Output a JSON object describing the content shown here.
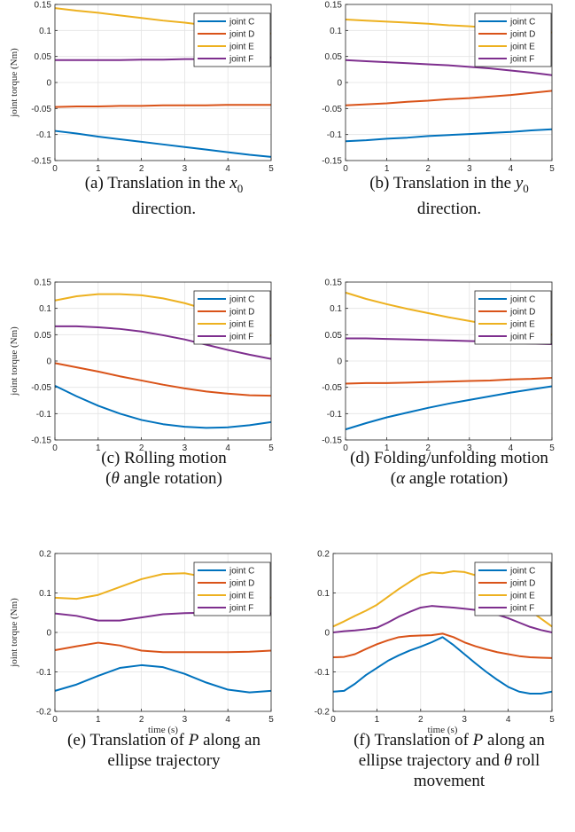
{
  "legend_labels": [
    "joint C",
    "joint D",
    "joint E",
    "joint F"
  ],
  "series_colors": [
    "#0072bd",
    "#d95319",
    "#edb120",
    "#7e2f8e"
  ],
  "chart_data": [
    {
      "type": "line",
      "ylabel": "joint torque (Nm)",
      "xlabel": "",
      "xlim": [
        0,
        5
      ],
      "ylim": [
        -0.15,
        0.15
      ],
      "xticks": [
        "0",
        "1",
        "2",
        "3",
        "4",
        "5"
      ],
      "yticks": [
        "-0.15",
        "-0.1",
        "-0.05",
        "0",
        "0.05",
        "0.1",
        "0.15"
      ],
      "grid": true,
      "legend": "top-right",
      "x": [
        0,
        0.5,
        1,
        1.5,
        2,
        2.5,
        3,
        3.5,
        4,
        4.5,
        5
      ],
      "series": [
        {
          "name": "joint C",
          "values": [
            -0.093,
            -0.098,
            -0.104,
            -0.109,
            -0.114,
            -0.119,
            -0.124,
            -0.129,
            -0.134,
            -0.139,
            -0.143
          ]
        },
        {
          "name": "joint D",
          "values": [
            -0.047,
            -0.046,
            -0.046,
            -0.045,
            -0.045,
            -0.044,
            -0.044,
            -0.044,
            -0.043,
            -0.043,
            -0.043
          ]
        },
        {
          "name": "joint E",
          "values": [
            0.143,
            0.138,
            0.134,
            0.129,
            0.124,
            0.119,
            0.115,
            0.11,
            0.105,
            0.1,
            0.094
          ]
        },
        {
          "name": "joint F",
          "values": [
            0.043,
            0.043,
            0.043,
            0.043,
            0.044,
            0.044,
            0.045,
            0.045,
            0.046,
            0.047,
            0.048
          ]
        }
      ],
      "caption": {
        "prefix": "(a) Translation in the ",
        "var": "x",
        "sub": "0",
        "suffix": " direction."
      }
    },
    {
      "type": "line",
      "ylabel": "",
      "xlabel": "",
      "xlim": [
        0,
        5
      ],
      "ylim": [
        -0.15,
        0.15
      ],
      "xticks": [
        "0",
        "1",
        "2",
        "3",
        "4",
        "5"
      ],
      "yticks": [
        "-0.15",
        "-0.1",
        "-0.05",
        "0",
        "0.05",
        "0.1",
        "0.15"
      ],
      "grid": true,
      "legend": "top-right",
      "x": [
        0,
        0.5,
        1,
        1.5,
        2,
        2.5,
        3,
        3.5,
        4,
        4.5,
        5
      ],
      "series": [
        {
          "name": "joint C",
          "values": [
            -0.113,
            -0.111,
            -0.108,
            -0.106,
            -0.103,
            -0.101,
            -0.099,
            -0.097,
            -0.095,
            -0.092,
            -0.09
          ]
        },
        {
          "name": "joint D",
          "values": [
            -0.044,
            -0.042,
            -0.04,
            -0.037,
            -0.035,
            -0.032,
            -0.03,
            -0.027,
            -0.024,
            -0.02,
            -0.016
          ]
        },
        {
          "name": "joint E",
          "values": [
            0.121,
            0.119,
            0.117,
            0.115,
            0.113,
            0.11,
            0.108,
            0.105,
            0.102,
            0.099,
            0.096
          ]
        },
        {
          "name": "joint F",
          "values": [
            0.043,
            0.041,
            0.039,
            0.037,
            0.035,
            0.033,
            0.03,
            0.027,
            0.023,
            0.019,
            0.014
          ]
        }
      ],
      "caption": {
        "prefix": "(b) Translation in the ",
        "var": "y",
        "sub": "0",
        "suffix": " direction."
      }
    },
    {
      "type": "line",
      "ylabel": "joint torque (Nm)",
      "xlabel": "",
      "xlim": [
        0,
        5
      ],
      "ylim": [
        -0.15,
        0.15
      ],
      "xticks": [
        "0",
        "1",
        "2",
        "3",
        "4",
        "5"
      ],
      "yticks": [
        "-0.15",
        "-0.1",
        "-0.05",
        "0",
        "0.05",
        "0.1",
        "0.15"
      ],
      "grid": true,
      "legend": "top-right",
      "x": [
        0,
        0.5,
        1,
        1.5,
        2,
        2.5,
        3,
        3.5,
        4,
        4.5,
        5
      ],
      "series": [
        {
          "name": "joint C",
          "values": [
            -0.047,
            -0.067,
            -0.085,
            -0.1,
            -0.112,
            -0.12,
            -0.125,
            -0.127,
            -0.126,
            -0.122,
            -0.116
          ]
        },
        {
          "name": "joint D",
          "values": [
            -0.004,
            -0.012,
            -0.02,
            -0.029,
            -0.037,
            -0.045,
            -0.052,
            -0.058,
            -0.062,
            -0.065,
            -0.066
          ]
        },
        {
          "name": "joint E",
          "values": [
            0.115,
            0.123,
            0.127,
            0.127,
            0.125,
            0.119,
            0.11,
            0.098,
            0.084,
            0.067,
            0.048
          ]
        },
        {
          "name": "joint F",
          "values": [
            0.066,
            0.066,
            0.064,
            0.061,
            0.056,
            0.049,
            0.041,
            0.031,
            0.021,
            0.012,
            0.004
          ]
        }
      ],
      "caption": {
        "line1": "(c) Rolling motion",
        "line2_prefix": "(",
        "var": "θ",
        "line2_suffix": " angle rotation)"
      }
    },
    {
      "type": "line",
      "ylabel": "",
      "xlabel": "",
      "xlim": [
        0,
        5
      ],
      "ylim": [
        -0.15,
        0.15
      ],
      "xticks": [
        "0",
        "1",
        "2",
        "3",
        "4",
        "5"
      ],
      "yticks": [
        "-0.15",
        "-0.1",
        "-0.05",
        "0",
        "0.05",
        "0.1",
        "0.15"
      ],
      "grid": true,
      "legend": "top-right",
      "x": [
        0,
        0.5,
        1,
        1.5,
        2,
        2.5,
        3,
        3.5,
        4,
        4.5,
        5
      ],
      "series": [
        {
          "name": "joint C",
          "values": [
            -0.13,
            -0.118,
            -0.107,
            -0.098,
            -0.089,
            -0.081,
            -0.074,
            -0.067,
            -0.06,
            -0.054,
            -0.048
          ]
        },
        {
          "name": "joint D",
          "values": [
            -0.043,
            -0.042,
            -0.042,
            -0.041,
            -0.04,
            -0.039,
            -0.038,
            -0.037,
            -0.035,
            -0.034,
            -0.032
          ]
        },
        {
          "name": "joint E",
          "values": [
            0.13,
            0.118,
            0.108,
            0.099,
            0.091,
            0.083,
            0.076,
            0.069,
            0.062,
            0.056,
            0.05
          ]
        },
        {
          "name": "joint F",
          "values": [
            0.043,
            0.043,
            0.042,
            0.041,
            0.04,
            0.039,
            0.038,
            0.037,
            0.035,
            0.033,
            0.032
          ]
        }
      ],
      "caption": {
        "line1": "(d) Folding/unfolding motion",
        "line2_prefix": "(",
        "var": "α",
        "line2_suffix": " angle rotation)"
      }
    },
    {
      "type": "line",
      "ylabel": "joint torque (Nm)",
      "xlabel": "time (s)",
      "xlim": [
        0,
        5
      ],
      "ylim": [
        -0.2,
        0.2
      ],
      "xticks": [
        "0",
        "1",
        "2",
        "3",
        "4",
        "5"
      ],
      "yticks": [
        "-0.2",
        "-0.1",
        "0",
        "0.1",
        "0.2"
      ],
      "grid": true,
      "legend": "top-right",
      "x": [
        0,
        0.5,
        1,
        1.5,
        2,
        2.5,
        3,
        3.5,
        4,
        4.5,
        5
      ],
      "series": [
        {
          "name": "joint C",
          "values": [
            -0.148,
            -0.132,
            -0.11,
            -0.09,
            -0.083,
            -0.088,
            -0.105,
            -0.127,
            -0.145,
            -0.152,
            -0.148
          ]
        },
        {
          "name": "joint D",
          "values": [
            -0.045,
            -0.035,
            -0.026,
            -0.033,
            -0.046,
            -0.05,
            -0.05,
            -0.05,
            -0.05,
            -0.049,
            -0.046
          ]
        },
        {
          "name": "joint E",
          "values": [
            0.088,
            0.085,
            0.095,
            0.115,
            0.135,
            0.148,
            0.15,
            0.14,
            0.118,
            0.097,
            0.088
          ]
        },
        {
          "name": "joint F",
          "values": [
            0.048,
            0.042,
            0.03,
            0.03,
            0.038,
            0.046,
            0.049,
            0.05,
            0.05,
            0.05,
            0.048
          ]
        }
      ],
      "caption": {
        "line1_prefix": "(e) Translation of ",
        "var": "P",
        "line1_suffix": " along an",
        "line2": "ellipse trajectory"
      }
    },
    {
      "type": "line",
      "ylabel": "",
      "xlabel": "time (s)",
      "xlim": [
        0,
        5
      ],
      "ylim": [
        -0.2,
        0.2
      ],
      "xticks": [
        "0",
        "1",
        "2",
        "3",
        "4",
        "5"
      ],
      "yticks": [
        "-0.2",
        "-0.1",
        "0",
        "0.1",
        "0.2"
      ],
      "grid": true,
      "legend": "top-right",
      "x": [
        0,
        0.25,
        0.5,
        0.75,
        1,
        1.25,
        1.5,
        1.75,
        2,
        2.25,
        2.5,
        2.75,
        3,
        3.25,
        3.5,
        3.75,
        4,
        4.25,
        4.5,
        4.75,
        5
      ],
      "series": [
        {
          "name": "joint C",
          "values": [
            -0.15,
            -0.148,
            -0.13,
            -0.108,
            -0.09,
            -0.072,
            -0.058,
            -0.046,
            -0.036,
            -0.025,
            -0.012,
            -0.032,
            -0.055,
            -0.078,
            -0.1,
            -0.12,
            -0.138,
            -0.15,
            -0.155,
            -0.155,
            -0.15
          ]
        },
        {
          "name": "joint D",
          "values": [
            -0.063,
            -0.062,
            -0.055,
            -0.042,
            -0.03,
            -0.02,
            -0.012,
            -0.009,
            -0.008,
            -0.007,
            -0.003,
            -0.012,
            -0.025,
            -0.035,
            -0.043,
            -0.05,
            -0.055,
            -0.06,
            -0.063,
            -0.064,
            -0.065
          ]
        },
        {
          "name": "joint E",
          "values": [
            0.015,
            0.028,
            0.042,
            0.055,
            0.07,
            0.09,
            0.11,
            0.128,
            0.145,
            0.152,
            0.15,
            0.155,
            0.153,
            0.145,
            0.13,
            0.112,
            0.095,
            0.075,
            0.055,
            0.035,
            0.015
          ]
        },
        {
          "name": "joint F",
          "values": [
            0.0,
            0.003,
            0.005,
            0.008,
            0.012,
            0.025,
            0.04,
            0.052,
            0.063,
            0.067,
            0.065,
            0.063,
            0.06,
            0.057,
            0.052,
            0.045,
            0.036,
            0.025,
            0.014,
            0.006,
            0.0
          ]
        }
      ],
      "caption": {
        "line1_prefix": "(f) Translation of ",
        "var": "P",
        "line1_suffix": " along an",
        "line2_prefix": "ellipse trajectory and ",
        "var2": "θ",
        "line2_suffix": " roll",
        "line3": "movement"
      }
    }
  ]
}
